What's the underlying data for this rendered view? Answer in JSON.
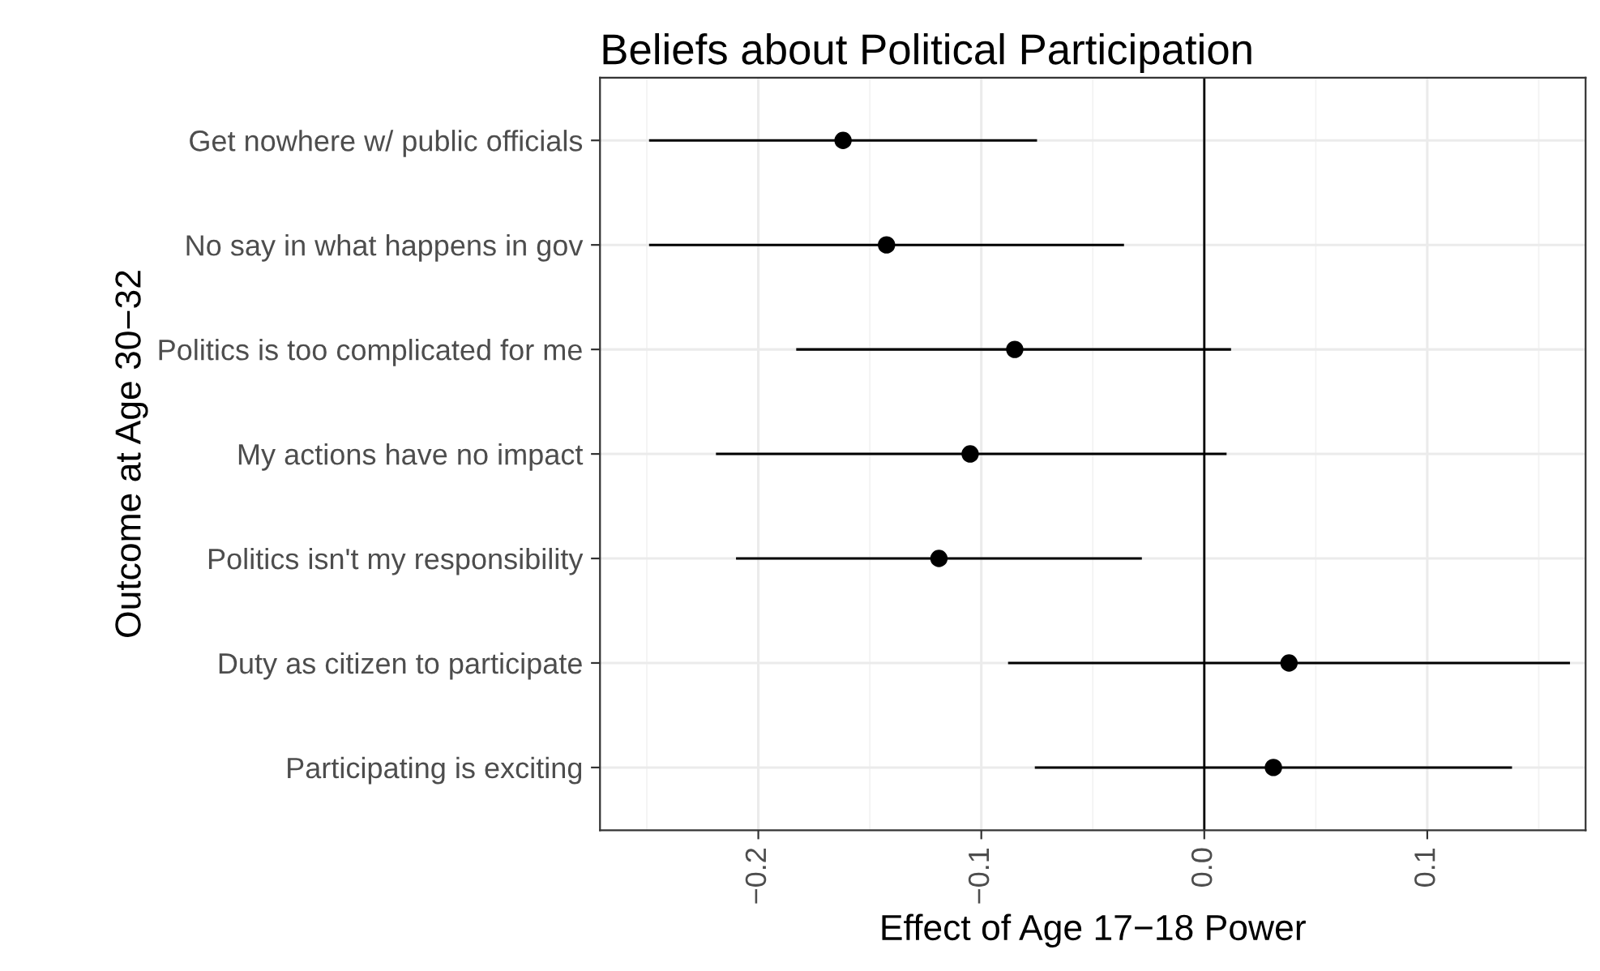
{
  "chart_data": {
    "type": "scatter",
    "orientation": "horizontal",
    "title": "Beliefs about Political Participation",
    "xlabel": "Effect of Age 17−18 Power",
    "ylabel": "Outcome at Age 30−32",
    "categories": [
      "Get nowhere w/ public officials",
      "No say in what happens in gov",
      "Politics is too complicated for me",
      "My actions have no impact",
      "Politics isn't my responsibility",
      "Duty as citizen to participate",
      "Participating is exciting"
    ],
    "values": [
      -0.162,
      -0.1425,
      -0.085,
      -0.105,
      -0.119,
      0.038,
      0.031
    ],
    "errors": [
      [
        -0.249,
        -0.075
      ],
      [
        -0.249,
        -0.036
      ],
      [
        -0.183,
        0.012
      ],
      [
        -0.219,
        0.01
      ],
      [
        -0.21,
        -0.028
      ],
      [
        -0.088,
        0.164
      ],
      [
        -0.076,
        0.138
      ]
    ],
    "color": "#000000",
    "marker": "circle",
    "xlim": [
      -0.271,
      0.171
    ],
    "xticks": [
      {
        "value": -0.2,
        "label": "−0.2"
      },
      {
        "value": -0.1,
        "label": "−0.1"
      },
      {
        "value": 0.0,
        "label": "0.0"
      },
      {
        "value": 0.1,
        "label": "0.1"
      }
    ],
    "ref_lines": [
      {
        "axis": "x",
        "value": 0,
        "color": "#000000"
      }
    ],
    "grid": true
  }
}
